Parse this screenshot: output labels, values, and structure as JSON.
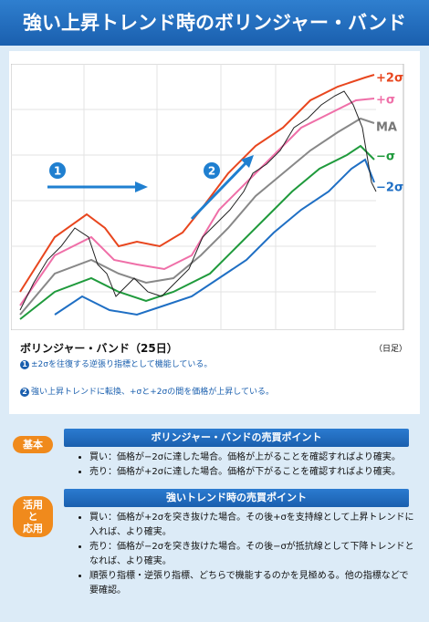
{
  "header": {
    "title": "強い上昇トレンド時のボリンジャー・バンド"
  },
  "chart": {
    "band_labels": [
      {
        "text": "+2σ",
        "color": "#e8461e"
      },
      {
        "text": "+σ",
        "color": "#ef6fa8"
      },
      {
        "text": "MA",
        "color": "#777777"
      },
      {
        "text": "−σ",
        "color": "#1f9a3c"
      },
      {
        "text": "−2σ",
        "color": "#1f6fc4"
      }
    ],
    "markers": [
      "1",
      "2"
    ],
    "caption": "ボリンジャー・バンド（25日）",
    "unit": "（日足）",
    "notes": [
      {
        "num": "1",
        "text": "±2σを往復する逆張り指標として機能している。"
      },
      {
        "num": "2",
        "text": "強い上昇トレンドに転換、+σと+2σの間を価格が上昇している。"
      }
    ]
  },
  "sections": [
    {
      "tag": [
        "基本"
      ],
      "heading": "ボリンジャー・バンドの売買ポイント",
      "items": [
        "買い：価格が−2σに達した場合。価格が上がることを確認すればより確実。",
        "売り：価格が+2σに達した場合。価格が下がることを確認すればより確実。"
      ]
    },
    {
      "tag": [
        "活用",
        "と",
        "応用"
      ],
      "heading": "強いトレンド時の売買ポイント",
      "items": [
        "買い：価格が+2σを突き抜けた場合。その後+σを支持線として上昇トレンドに入れば、より確実。",
        "売り：価格が−2σを突き抜けた場合。その後−σが抵抗線として下降トレンドとなれば、より確実。",
        "順張り指標・逆張り指標、どちらで機能するのかを見極める。他の指標などで要確認。"
      ]
    }
  ]
}
